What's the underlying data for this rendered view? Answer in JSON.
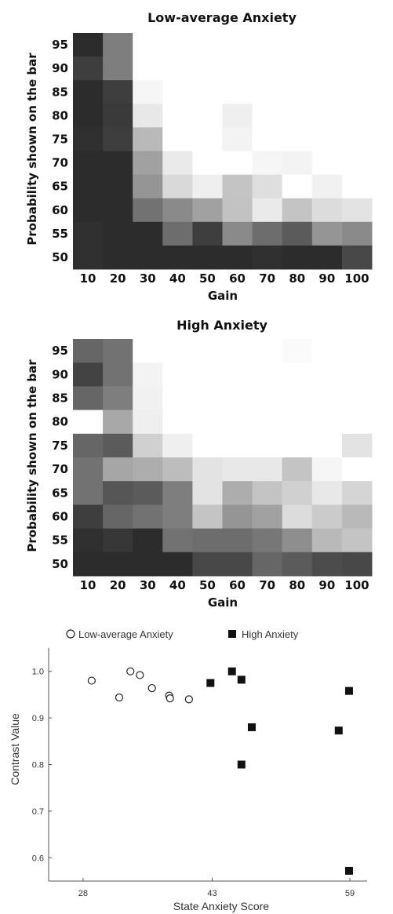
{
  "chart_data": [
    {
      "type": "heatmap",
      "title": "Low-average Anxiety",
      "xlabel": "Gain",
      "ylabel": "Probability shown on the bar",
      "x_categories": [
        "10",
        "20",
        "30",
        "40",
        "50",
        "60",
        "70",
        "80",
        "90",
        "100"
      ],
      "y_categories": [
        "95",
        "90",
        "85",
        "80",
        "75",
        "70",
        "65",
        "60",
        "55",
        "50"
      ],
      "value_scale": "cell brightness 0 (black) to 1 (white)",
      "values": [
        [
          0.1,
          0.45,
          1.0,
          1.0,
          1.0,
          1.0,
          1.0,
          1.0,
          1.0,
          1.0
        ],
        [
          0.18,
          0.45,
          1.0,
          1.0,
          1.0,
          1.0,
          1.0,
          1.0,
          1.0,
          1.0
        ],
        [
          0.1,
          0.18,
          0.96,
          1.0,
          1.0,
          1.0,
          1.0,
          1.0,
          1.0,
          1.0
        ],
        [
          0.1,
          0.16,
          0.9,
          1.0,
          1.0,
          0.93,
          1.0,
          1.0,
          1.0,
          1.0
        ],
        [
          0.12,
          0.18,
          0.7,
          1.0,
          1.0,
          0.95,
          1.0,
          1.0,
          1.0,
          1.0
        ],
        [
          0.1,
          0.1,
          0.6,
          0.91,
          1.0,
          1.0,
          0.96,
          0.95,
          1.0,
          1.0
        ],
        [
          0.1,
          0.1,
          0.55,
          0.84,
          0.93,
          0.75,
          0.86,
          1.0,
          0.94,
          1.0
        ],
        [
          0.1,
          0.1,
          0.4,
          0.5,
          0.6,
          0.74,
          0.91,
          0.75,
          0.85,
          0.88
        ],
        [
          0.12,
          0.1,
          0.1,
          0.38,
          0.18,
          0.5,
          0.38,
          0.3,
          0.55,
          0.5
        ],
        [
          0.12,
          0.1,
          0.1,
          0.1,
          0.1,
          0.1,
          0.12,
          0.1,
          0.1,
          0.22
        ]
      ]
    },
    {
      "type": "heatmap",
      "title": "High Anxiety",
      "xlabel": "Gain",
      "ylabel": "Probability shown on the bar",
      "x_categories": [
        "10",
        "20",
        "30",
        "40",
        "50",
        "60",
        "70",
        "80",
        "90",
        "100"
      ],
      "y_categories": [
        "95",
        "90",
        "85",
        "80",
        "75",
        "70",
        "65",
        "60",
        "55",
        "50"
      ],
      "value_scale": "cell brightness 0 (black) to 1 (white)",
      "values": [
        [
          0.35,
          0.4,
          1.0,
          1.0,
          1.0,
          1.0,
          1.0,
          0.98,
          1.0,
          1.0
        ],
        [
          0.2,
          0.4,
          0.95,
          1.0,
          1.0,
          1.0,
          1.0,
          1.0,
          1.0,
          1.0
        ],
        [
          0.35,
          0.45,
          0.94,
          1.0,
          1.0,
          1.0,
          1.0,
          1.0,
          1.0,
          1.0
        ],
        [
          1.0,
          0.63,
          0.93,
          1.0,
          1.0,
          1.0,
          1.0,
          1.0,
          1.0,
          1.0
        ],
        [
          0.35,
          0.3,
          0.8,
          0.93,
          1.0,
          1.0,
          1.0,
          1.0,
          1.0,
          0.88
        ],
        [
          0.4,
          0.62,
          0.65,
          0.72,
          0.88,
          0.9,
          0.9,
          0.75,
          0.96,
          1.0
        ],
        [
          0.4,
          0.28,
          0.3,
          0.45,
          0.88,
          0.65,
          0.75,
          0.8,
          0.9,
          0.82
        ],
        [
          0.18,
          0.35,
          0.4,
          0.45,
          0.75,
          0.55,
          0.6,
          0.85,
          0.78,
          0.7
        ],
        [
          0.12,
          0.15,
          0.1,
          0.4,
          0.38,
          0.38,
          0.42,
          0.52,
          0.7,
          0.75
        ],
        [
          0.1,
          0.1,
          0.1,
          0.1,
          0.22,
          0.22,
          0.35,
          0.3,
          0.24,
          0.22
        ]
      ]
    },
    {
      "type": "scatter",
      "xlabel": "State Anxiety Score",
      "ylabel": "Contrast Value",
      "xlim": [
        24,
        61
      ],
      "ylim": [
        0.55,
        1.05
      ],
      "xticks": [
        "28",
        "43",
        "59"
      ],
      "yticks": [
        "0.6",
        "0.7",
        "0.8",
        "0.9",
        "1.0"
      ],
      "legend_placement": "top",
      "series": [
        {
          "name": "Low-average Anxiety",
          "marker": "open-circle",
          "points": [
            {
              "x": 29.0,
              "y": 0.98
            },
            {
              "x": 32.2,
              "y": 0.944
            },
            {
              "x": 33.5,
              "y": 1.0
            },
            {
              "x": 34.6,
              "y": 0.992
            },
            {
              "x": 36.0,
              "y": 0.964
            },
            {
              "x": 38.0,
              "y": 0.948
            },
            {
              "x": 38.1,
              "y": 0.942
            },
            {
              "x": 40.3,
              "y": 0.94
            }
          ]
        },
        {
          "name": "High Anxiety",
          "marker": "filled-square",
          "points": [
            {
              "x": 42.8,
              "y": 0.975
            },
            {
              "x": 45.3,
              "y": 1.0
            },
            {
              "x": 46.4,
              "y": 0.982
            },
            {
              "x": 47.6,
              "y": 0.88
            },
            {
              "x": 46.4,
              "y": 0.8
            },
            {
              "x": 57.7,
              "y": 0.873
            },
            {
              "x": 58.9,
              "y": 0.958
            },
            {
              "x": 58.9,
              "y": 0.572
            }
          ]
        }
      ]
    }
  ]
}
